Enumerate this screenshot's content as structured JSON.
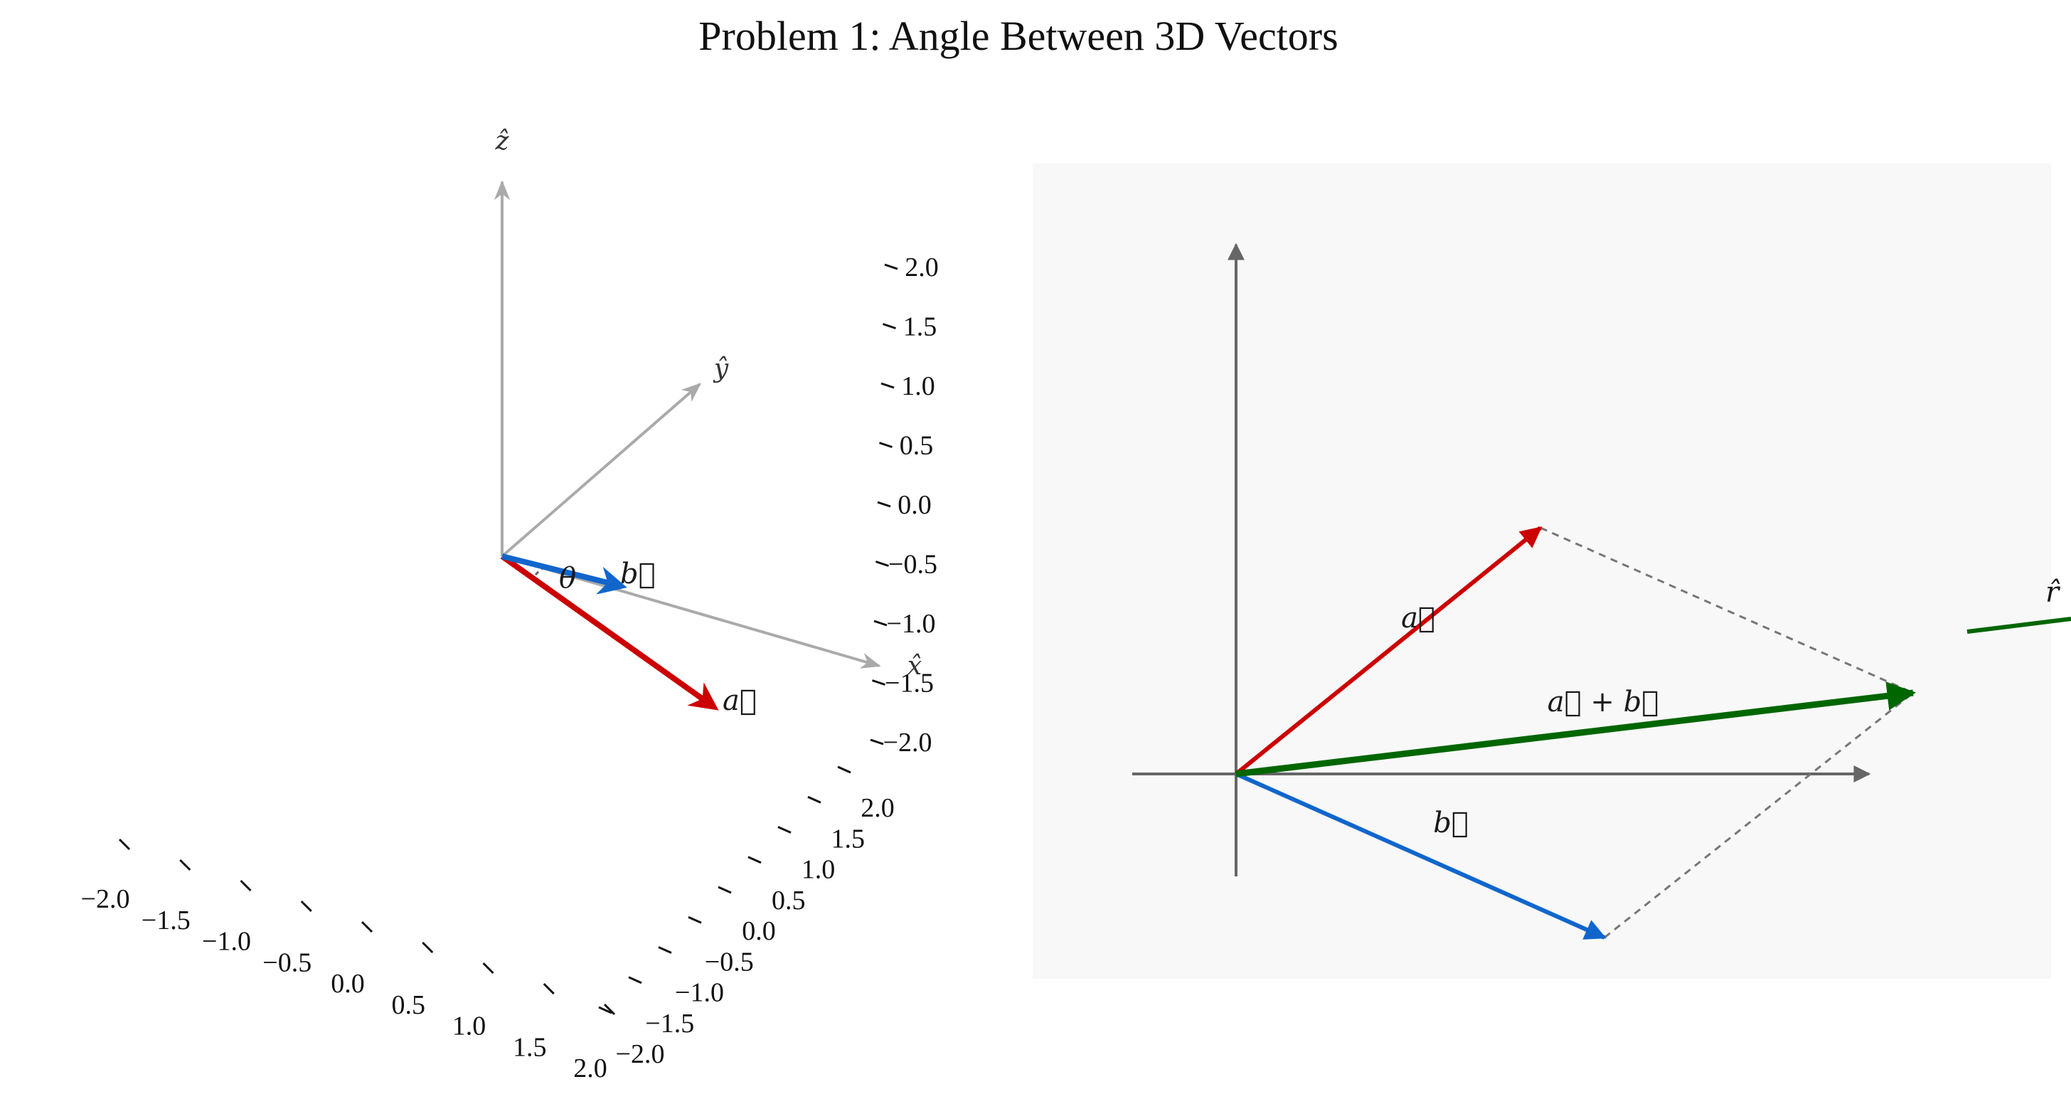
{
  "title": "Problem 1: Angle Between 3D Vectors",
  "colors": {
    "vector_a": "#cc0000",
    "vector_b": "#1166cc",
    "vector_sum": "#006600",
    "axis_3d": "#aaaaaa",
    "axis_2d": "#666666",
    "panel_bg": "#f8f8f8",
    "dashed": "#777777"
  },
  "left_panel": {
    "axis_labels": {
      "x": "x̂",
      "y": "ŷ",
      "z": "ẑ"
    },
    "vector_labels": {
      "a": "a⃗",
      "b": "b⃗",
      "theta": "θ"
    },
    "x_ticks": [
      "−2.0",
      "−1.5",
      "−1.0",
      "−0.5",
      "0.0",
      "0.5",
      "1.0",
      "1.5",
      "2.0"
    ],
    "y_ticks": [
      "−2.0",
      "−1.5",
      "−1.0",
      "−0.5",
      "0.0",
      "0.5",
      "1.0",
      "1.5",
      "2.0"
    ],
    "z_ticks": [
      "2.0",
      "1.5",
      "1.0",
      "0.5",
      "0.0",
      "−0.5",
      "−1.0",
      "−1.5",
      "−2.0"
    ]
  },
  "right_panel": {
    "vector_labels": {
      "a": "a⃗",
      "b": "b⃗",
      "sum": "a⃗ + b⃗",
      "r_hat": "r̂"
    }
  }
}
